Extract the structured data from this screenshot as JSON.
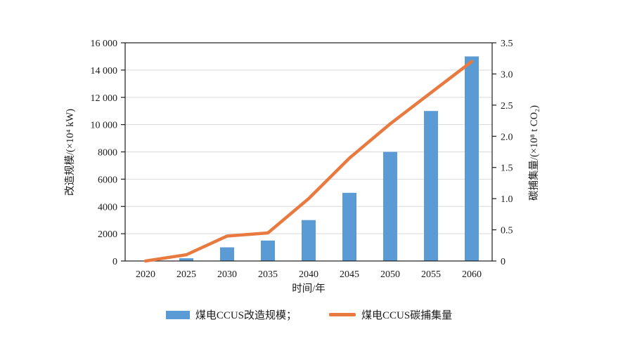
{
  "chart_data": {
    "type": "combo-bar-line",
    "categories": [
      "2020",
      "2025",
      "2030",
      "2035",
      "2040",
      "2045",
      "2050",
      "2055",
      "2060"
    ],
    "series": [
      {
        "name": "煤电CCUS改造规模",
        "type": "bar",
        "axis": "left",
        "color": "#5B9BD5",
        "values": [
          0,
          200,
          1000,
          1500,
          3000,
          5000,
          8000,
          11000,
          15000
        ]
      },
      {
        "name": "煤电CCUS碳捕集量",
        "type": "line",
        "axis": "right",
        "color": "#E87A3F",
        "values": [
          0,
          0.1,
          0.4,
          0.45,
          1.0,
          1.65,
          2.2,
          2.7,
          3.2
        ]
      }
    ],
    "x_axis": {
      "label": "时间/年"
    },
    "y_left": {
      "label": "改造规模/(×10⁴ kW)",
      "min": 0,
      "max": 16000,
      "tick_values": [
        0,
        2000,
        4000,
        6000,
        8000,
        10000,
        12000,
        14000,
        16000
      ],
      "tick_labels": [
        "0",
        "2000",
        "4000",
        "6000",
        "8000",
        "10 000",
        "12 000",
        "14 000",
        "16 000"
      ]
    },
    "y_right": {
      "label": "碳捕集量/(×10⁸ t CO₂)",
      "min": 0,
      "max": 3.5,
      "tick_values": [
        0,
        0.5,
        1.0,
        1.5,
        2.0,
        2.5,
        3.0,
        3.5
      ],
      "tick_labels": [
        "0",
        "0.5",
        "1.0",
        "1.5",
        "2.0",
        "2.5",
        "3.0",
        "3.5"
      ]
    },
    "grid": true,
    "legend": {
      "position": "bottom",
      "items": [
        {
          "label": "煤电CCUS改造规模；",
          "type": "bar",
          "color": "#5B9BD5"
        },
        {
          "label": "煤电CCUS碳捕集量",
          "type": "line",
          "color": "#E87A3F"
        }
      ]
    },
    "colors": {
      "bar": "#5B9BD5",
      "line": "#E87A3F",
      "grid": "#D9D9D9",
      "axis": "#1a1a1a"
    }
  }
}
